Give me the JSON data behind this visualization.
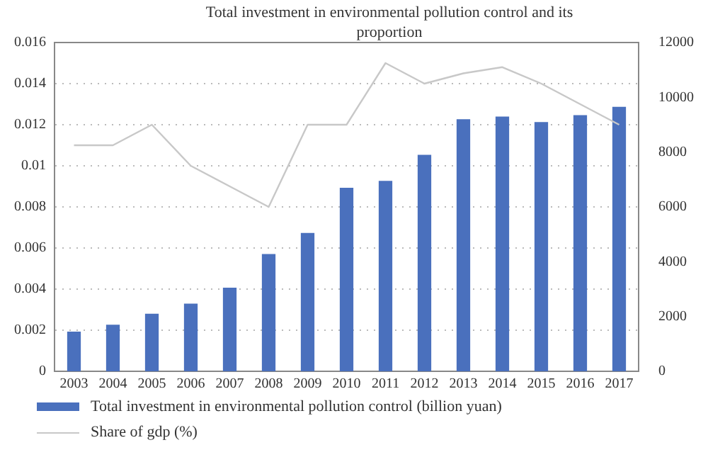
{
  "chart_data": {
    "type": "bar",
    "title": "Total investment in environmental pollution control and its proportion",
    "categories": [
      "2003",
      "2004",
      "2005",
      "2006",
      "2007",
      "2008",
      "2009",
      "2010",
      "2011",
      "2012",
      "2013",
      "2014",
      "2015",
      "2016",
      "2017"
    ],
    "series": [
      {
        "name": "Total investment in environmental pollution control (billion yuan)",
        "axis": "y2",
        "color": "#4a70bd",
        "values": [
          1450,
          1700,
          2100,
          2470,
          3050,
          4280,
          5050,
          6700,
          6950,
          7900,
          9200,
          9300,
          9100,
          9350,
          9650
        ]
      },
      {
        "name": "Share of gdp (%)",
        "type": "line",
        "axis": "y",
        "color": "#c8c8c8",
        "values": [
          0.011,
          0.011,
          0.012,
          0.01,
          0.009,
          0.008,
          0.012,
          0.012,
          0.015,
          0.014,
          0.0145,
          0.0148,
          0.014,
          0.013,
          0.012
        ]
      }
    ],
    "ylim": [
      0,
      0.016
    ],
    "yticks": [
      0,
      0.002,
      0.004,
      0.006,
      0.008,
      0.01,
      0.012,
      0.014,
      0.016
    ],
    "y2lim": [
      0,
      12000
    ],
    "y2ticks": [
      0,
      2000,
      4000,
      6000,
      8000,
      10000,
      12000
    ],
    "grid": "y",
    "legend": "bottom left",
    "marker": "none",
    "line_style": "solid"
  }
}
